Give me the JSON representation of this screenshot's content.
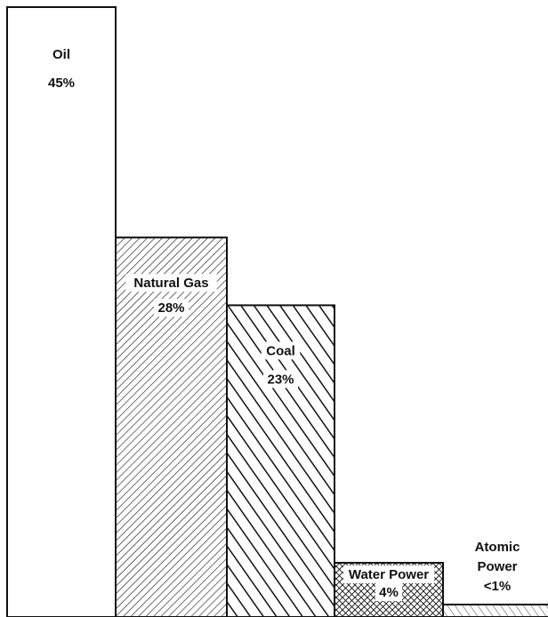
{
  "chart_data": {
    "type": "bar",
    "categories": [
      "Oil",
      "Natural Gas",
      "Coal",
      "Water Power",
      "Atomic Power"
    ],
    "values": [
      45,
      28,
      23,
      4,
      0.5
    ],
    "value_labels": [
      "45%",
      "28%",
      "23%",
      "4%",
      "<1%"
    ],
    "patterns": [
      "blank",
      "fine-diagonal-hatch",
      "bold-diagonal-hatch",
      "crosshatch",
      "light-diagonal-hatch"
    ],
    "ylim": [
      0,
      45
    ],
    "grid": false,
    "legend": "none"
  },
  "colors": {
    "ink": "#111111",
    "background": "#ffffff"
  }
}
